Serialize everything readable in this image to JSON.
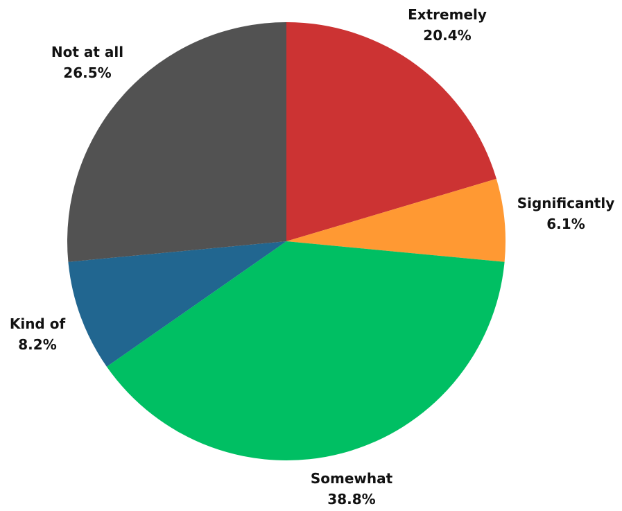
{
  "chart_data": {
    "type": "pie",
    "title": "",
    "start": "top",
    "direction": "clockwise",
    "slices": [
      {
        "label": "Extremely",
        "value": 20.4,
        "value_label": "20.4%",
        "color": "#cc3333"
      },
      {
        "label": "Significantly",
        "value": 6.1,
        "value_label": "6.1%",
        "color": "#ff9933"
      },
      {
        "label": "Somewhat",
        "value": 38.8,
        "value_label": "38.8%",
        "color": "#00bf63"
      },
      {
        "label": "Kind of",
        "value": 8.2,
        "value_label": "8.2%",
        "color": "#216690"
      },
      {
        "label": "Not at all",
        "value": 26.5,
        "value_label": "26.5%",
        "color": "#525252"
      }
    ]
  }
}
